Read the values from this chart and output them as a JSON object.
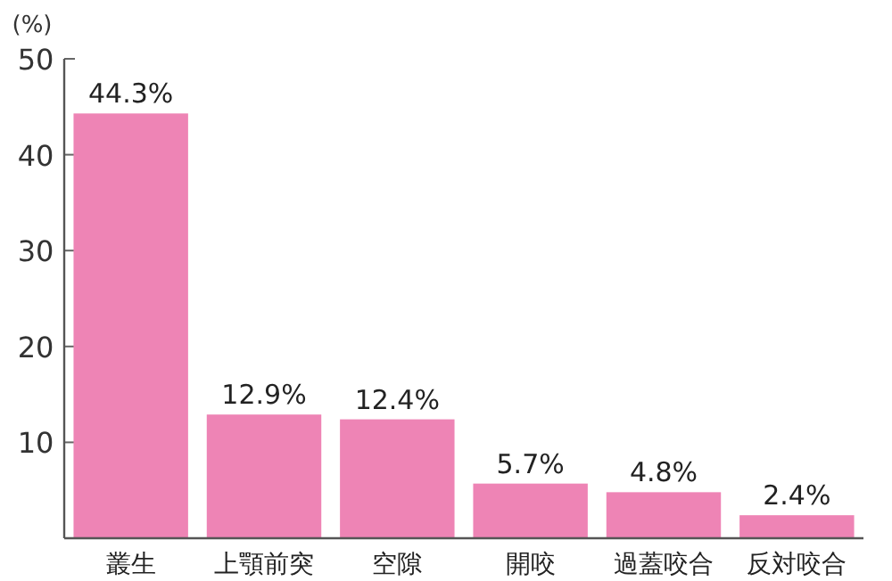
{
  "chart_data": {
    "type": "bar",
    "ylabel": "(%)",
    "categories": [
      "叢生",
      "上顎前突",
      "空隙",
      "開咬",
      "過蓋咬合",
      "反対咬合"
    ],
    "values": [
      44.3,
      12.9,
      12.4,
      5.7,
      4.8,
      2.4
    ],
    "value_labels": [
      "44.3%",
      "12.9%",
      "12.4%",
      "5.7%",
      "4.8%",
      "2.4%"
    ],
    "color": "#ee84b5",
    "ylim": [
      0,
      50
    ],
    "yticks": [
      {
        "value": 0,
        "label": null
      },
      10,
      20,
      30,
      40,
      50
    ]
  }
}
